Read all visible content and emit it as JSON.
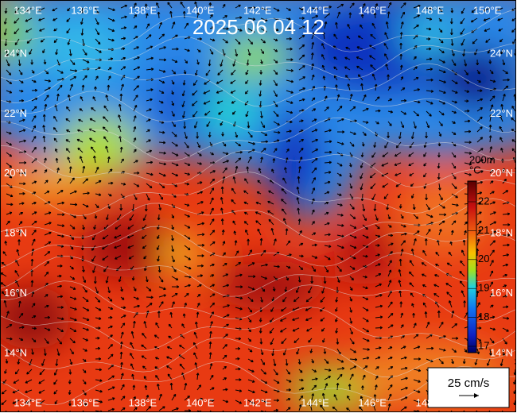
{
  "title": "2025 06 04 12",
  "longitudes": [
    "134°E",
    "136°E",
    "138°E",
    "140°E",
    "142°E",
    "144°E",
    "146°E",
    "148°E",
    "150°E"
  ],
  "latitudes": [
    "24°N",
    "22°N",
    "20°N",
    "18°N",
    "16°N",
    "14°N"
  ],
  "colorbar": {
    "depth": "200m",
    "unit": "°C",
    "ticks": [
      22,
      21,
      20,
      19,
      18,
      17
    ]
  },
  "scale": {
    "label": "25 cm/s"
  }
}
